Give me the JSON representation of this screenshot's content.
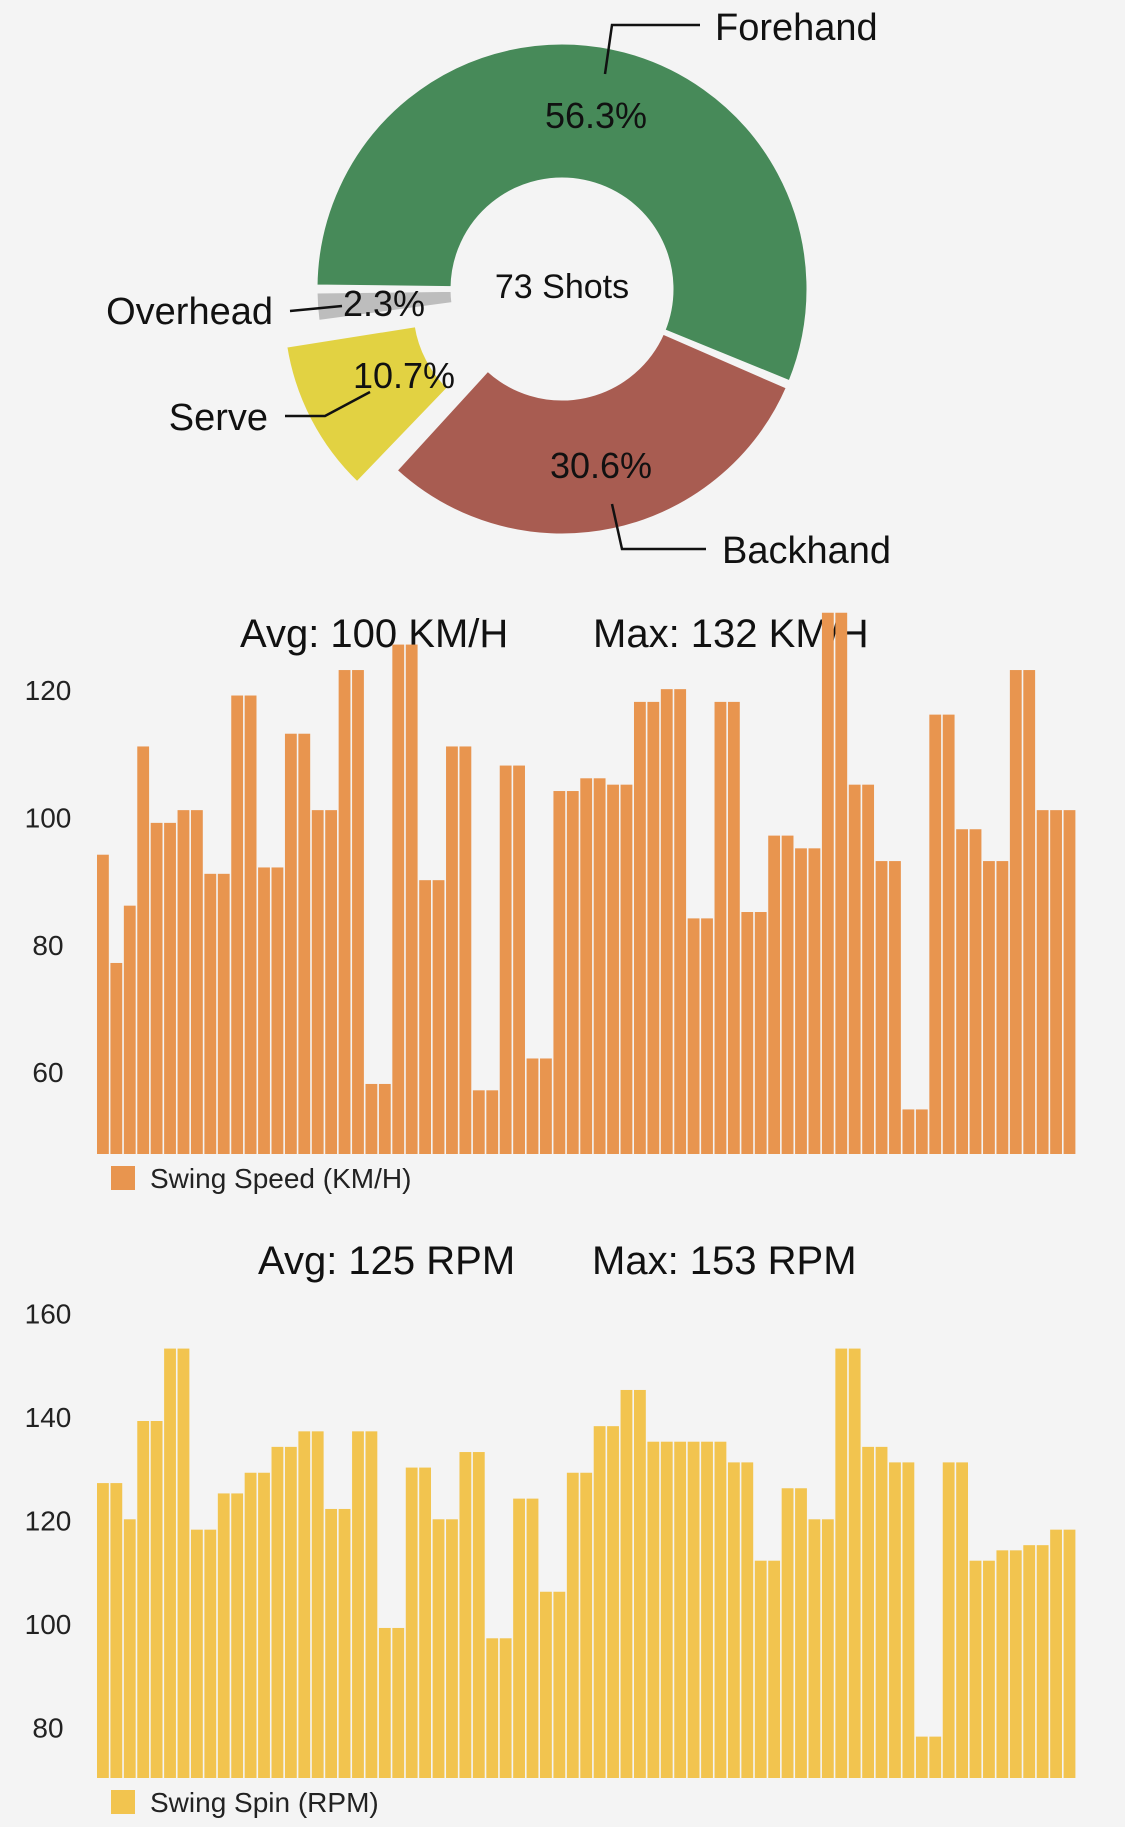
{
  "chart_data": [
    {
      "type": "pie",
      "center_label": "73 Shots",
      "slices": [
        {
          "label": "Forehand",
          "value": 56.3,
          "value_label": "56.3%",
          "color": "#478a59"
        },
        {
          "label": "Backhand",
          "value": 30.6,
          "value_label": "30.6%",
          "color": "#a85c51"
        },
        {
          "label": "Serve",
          "value": 10.7,
          "value_label": "10.7%",
          "color": "#e2d242"
        },
        {
          "label": "Overhead",
          "value": 2.3,
          "value_label": "2.3%",
          "color": "#bdbdbd"
        }
      ]
    },
    {
      "type": "bar",
      "title": "",
      "stats": {
        "avg": "Avg: 100 KM/H",
        "max": "Max: 132 KM/H"
      },
      "legend": "Swing Speed (KM/H)",
      "color": "#e8954f",
      "ylim": [
        47,
        134
      ],
      "yticks": [
        60,
        80,
        100,
        120
      ],
      "values": [
        94,
        77,
        86,
        111,
        99,
        99,
        101,
        101,
        91,
        91,
        119,
        119,
        92,
        92,
        113,
        113,
        101,
        101,
        123,
        123,
        58,
        58,
        127,
        127,
        90,
        90,
        111,
        111,
        57,
        57,
        108,
        108,
        62,
        62,
        104,
        104,
        106,
        106,
        105,
        105,
        118,
        118,
        120,
        120,
        84,
        84,
        118,
        118,
        85,
        85,
        97,
        97,
        95,
        95,
        132,
        132,
        105,
        105,
        93,
        93,
        54,
        54,
        116,
        116,
        98,
        98,
        93,
        93,
        123,
        123,
        101,
        101,
        101
      ]
    },
    {
      "type": "bar",
      "title": "",
      "stats": {
        "avg": "Avg: 125 RPM",
        "max": "Max: 153 RPM"
      },
      "legend": "Swing Spin (RPM)",
      "color": "#f2c44f",
      "ylim": [
        70,
        162
      ],
      "yticks": [
        80,
        100,
        120,
        140,
        160
      ],
      "values": [
        127,
        127,
        120,
        139,
        139,
        153,
        153,
        118,
        118,
        125,
        125,
        129,
        129,
        134,
        134,
        137,
        137,
        122,
        122,
        137,
        137,
        99,
        99,
        130,
        130,
        120,
        120,
        133,
        133,
        97,
        97,
        124,
        124,
        106,
        106,
        129,
        129,
        138,
        138,
        145,
        145,
        135,
        135,
        135,
        135,
        135,
        135,
        131,
        131,
        112,
        112,
        126,
        126,
        120,
        120,
        153,
        153,
        134,
        134,
        131,
        131,
        78,
        78,
        131,
        131,
        112,
        112,
        114,
        114,
        115,
        115,
        118,
        118
      ]
    }
  ]
}
